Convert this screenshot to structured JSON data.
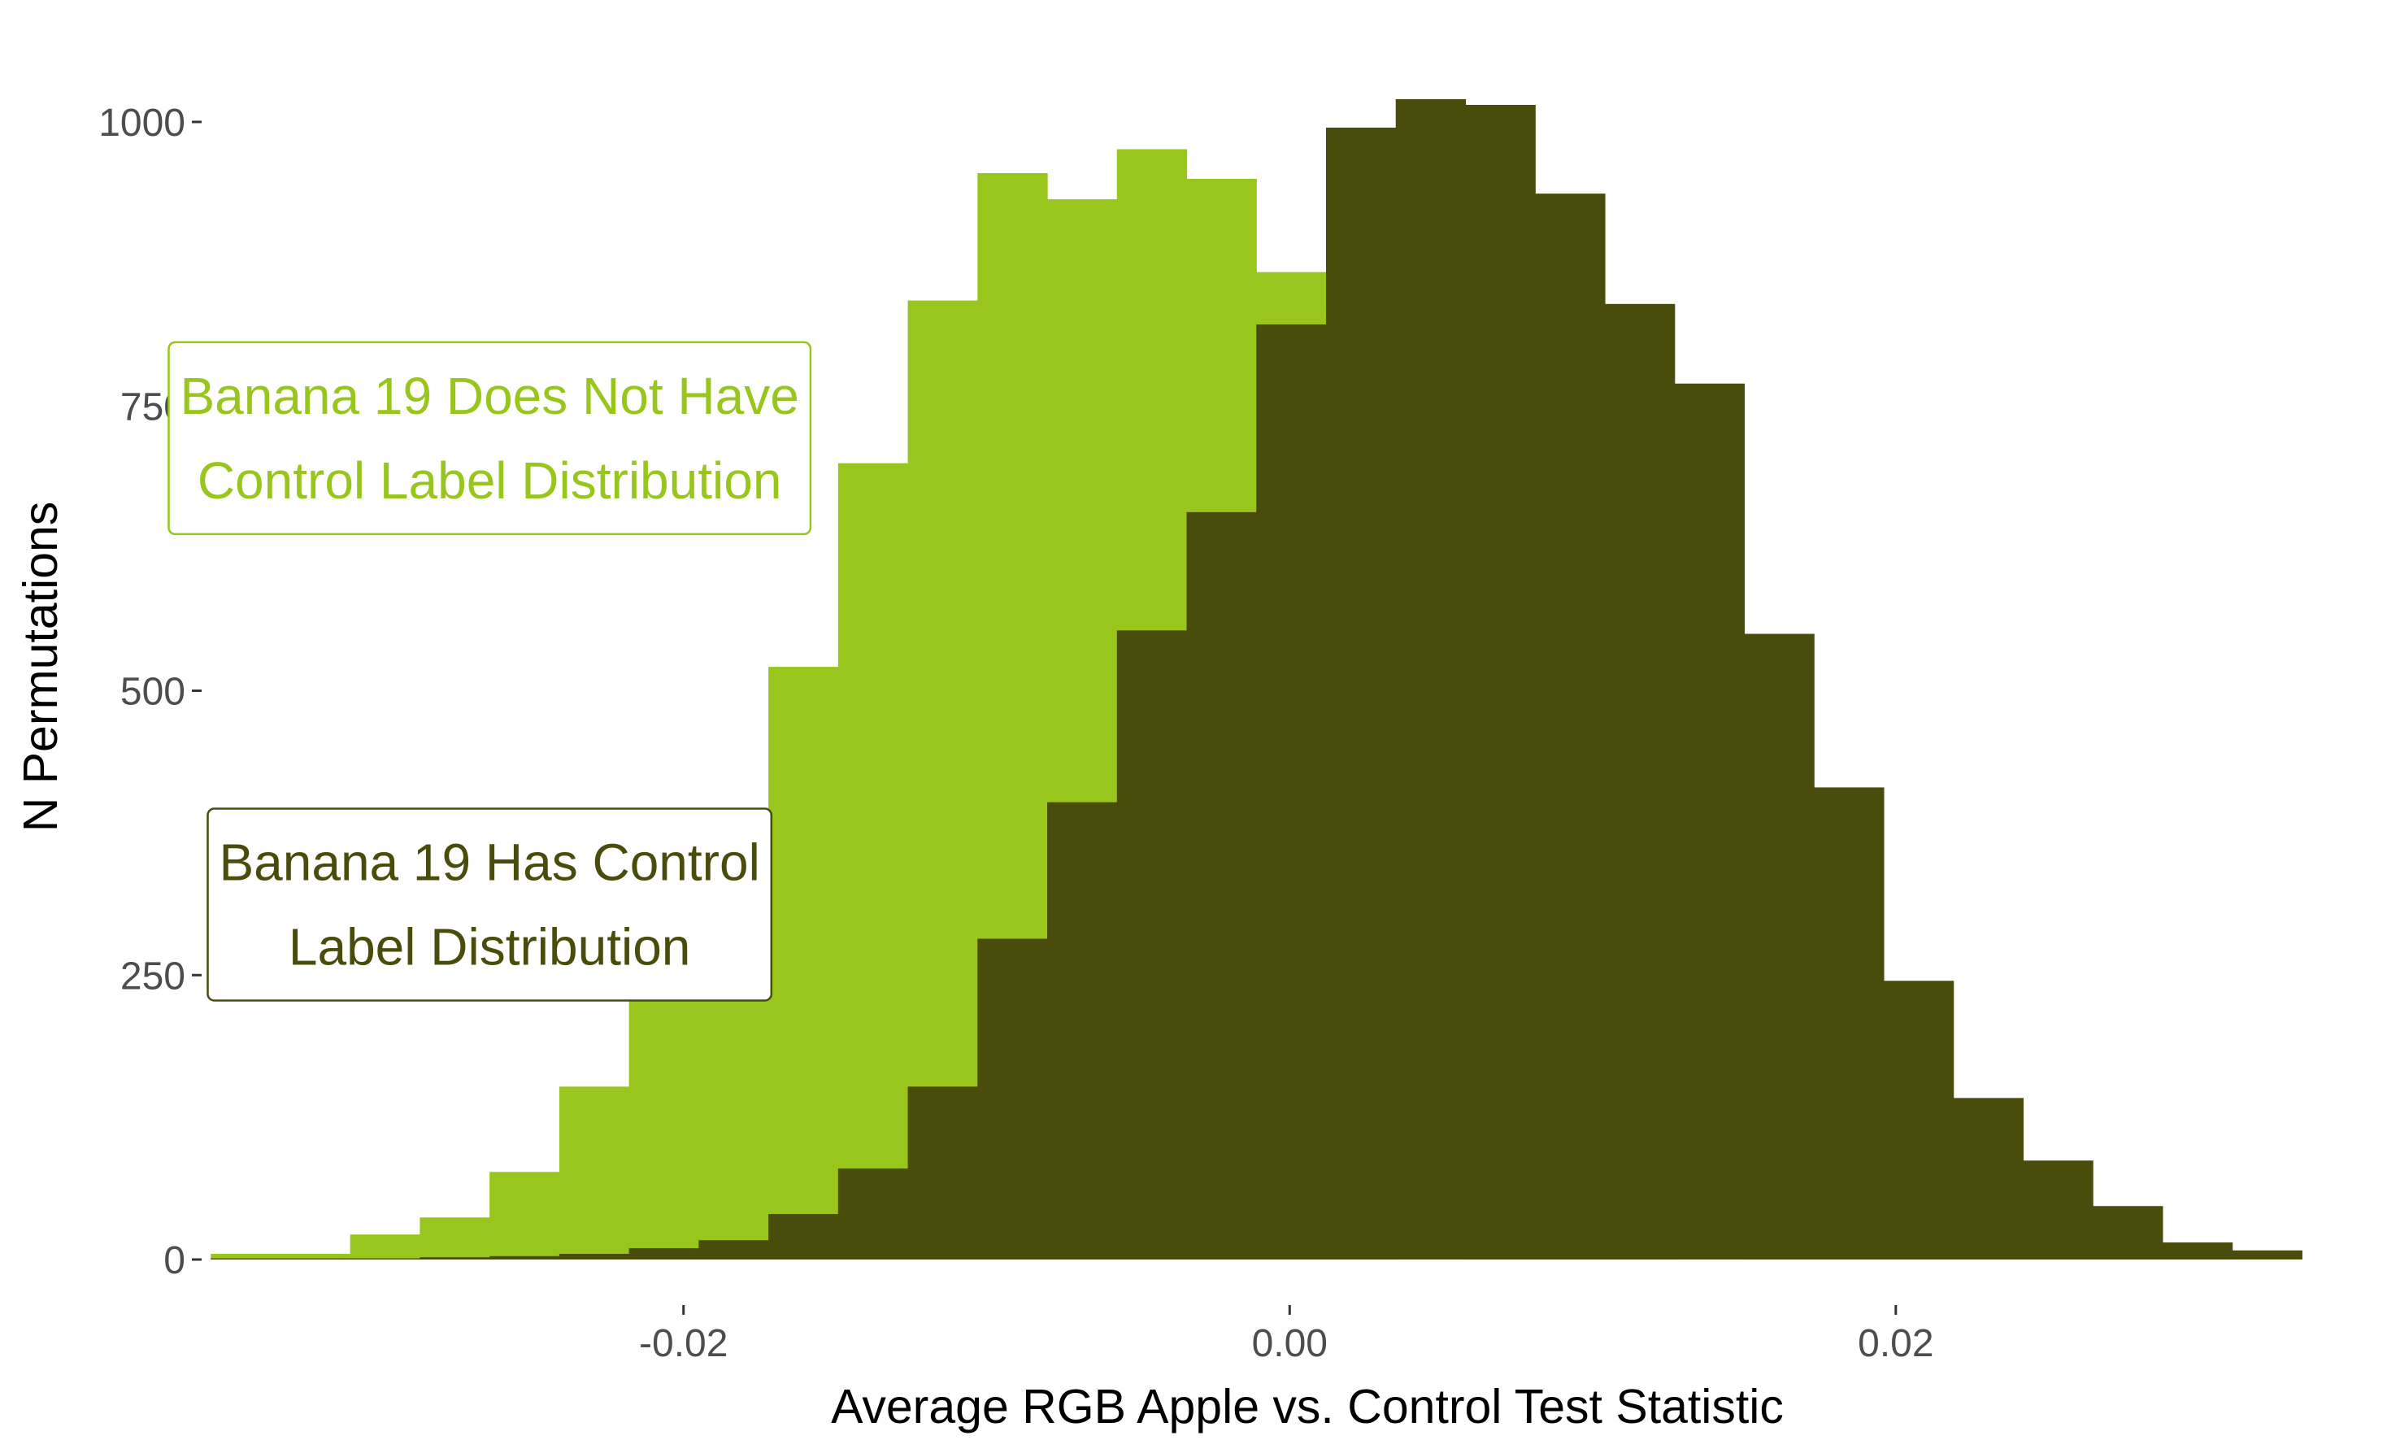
{
  "chart_data": {
    "type": "bar",
    "title": "",
    "xlabel": "Average RGB Apple vs. Control Test Statistic",
    "ylabel": "N Permutations",
    "xlim": [
      -0.0359,
      0.0339
    ],
    "ylim": [
      -40,
      1050
    ],
    "x_ticks": [
      {
        "value": -0.02,
        "label": "-0.02"
      },
      {
        "value": 0.0,
        "label": "0.00"
      },
      {
        "value": 0.02,
        "label": "0.02"
      }
    ],
    "y_ticks": [
      {
        "value": 0,
        "label": "0"
      },
      {
        "value": 250,
        "label": "250"
      },
      {
        "value": 500,
        "label": "500"
      },
      {
        "value": 750,
        "label": "750"
      },
      {
        "value": 1000,
        "label": "1000"
      }
    ],
    "grid": false,
    "bin_width": 0.0023,
    "series": [
      {
        "label": "Banana 19 Does Not Have Control Label Distribution",
        "color": "#99c61d",
        "bin_starts": [
          -0.0356,
          -0.0333,
          -0.031,
          -0.0287,
          -0.0264,
          -0.0241,
          -0.0218,
          -0.0195,
          -0.0172,
          -0.0149,
          -0.0126,
          -0.0103,
          -0.008,
          -0.0057,
          -0.0034,
          -0.0011
        ],
        "counts": [
          5,
          5,
          22,
          37,
          77,
          152,
          250,
          380,
          521,
          700,
          843,
          955,
          932,
          976,
          950,
          868
        ]
      },
      {
        "label": "Banana 19 Has Control Label Distribution",
        "color": "#4a4c0c",
        "bin_starts": [
          -0.0356,
          -0.0333,
          -0.031,
          -0.0287,
          -0.0264,
          -0.0241,
          -0.0218,
          -0.0195,
          -0.0172,
          -0.0149,
          -0.0126,
          -0.0103,
          -0.008,
          -0.0057,
          -0.0034,
          -0.0011,
          0.0012,
          0.0035,
          0.0058,
          0.0081,
          0.0104,
          0.0127,
          0.015,
          0.0173,
          0.0196,
          0.0219,
          0.0242,
          0.0265,
          0.0288,
          0.0311
        ],
        "counts": [
          1,
          1,
          1,
          2,
          3,
          5,
          10,
          17,
          40,
          80,
          152,
          282,
          402,
          553,
          657,
          822,
          995,
          1020,
          1015,
          937,
          840,
          770,
          550,
          415,
          245,
          142,
          87,
          47,
          15,
          8
        ]
      }
    ],
    "annotations": [
      {
        "lines": [
          "Banana 19 Does Not Have",
          "Control Label Distribution"
        ],
        "color": "#99c61d",
        "anchor_x": -0.0264,
        "anchor_y": 722
      },
      {
        "lines": [
          "Banana 19 Has Control",
          "Label Distribution"
        ],
        "color": "#4a4c0c",
        "anchor_x": -0.0264,
        "anchor_y": 312
      }
    ]
  }
}
